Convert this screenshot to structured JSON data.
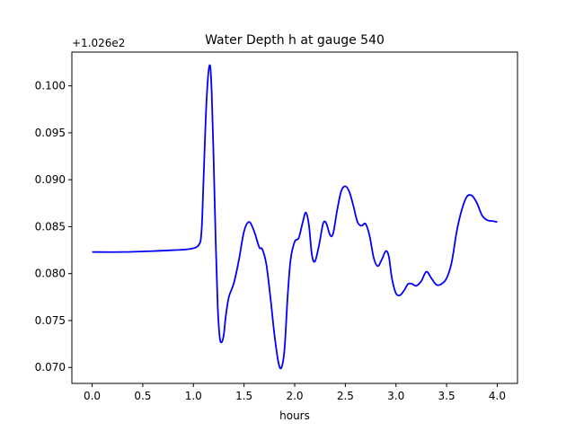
{
  "chart_data": {
    "type": "line",
    "title": "Water Depth h at gauge 540",
    "xlabel": "hours",
    "ylabel": "",
    "offset_label": "+1.026e2",
    "xlim": [
      -0.2,
      4.2
    ],
    "ylim": [
      0.0683,
      0.1036
    ],
    "x_ticks": [
      0.0,
      0.5,
      1.0,
      1.5,
      2.0,
      2.5,
      3.0,
      3.5,
      4.0
    ],
    "x_tick_labels": [
      "0.0",
      "0.5",
      "1.0",
      "1.5",
      "2.0",
      "2.5",
      "3.0",
      "3.5",
      "4.0"
    ],
    "y_ticks": [
      0.07,
      0.075,
      0.08,
      0.085,
      0.09,
      0.095,
      0.1
    ],
    "y_tick_labels": [
      "0.070",
      "0.075",
      "0.080",
      "0.085",
      "0.090",
      "0.095",
      "0.100"
    ],
    "grid": false,
    "line_color": "#0000ff",
    "series": [
      {
        "x": [
          0.0,
          0.3,
          0.6,
          0.8,
          0.95,
          1.05,
          1.08,
          1.1,
          1.13,
          1.16,
          1.18,
          1.2,
          1.22,
          1.24,
          1.26,
          1.28,
          1.3,
          1.32,
          1.35,
          1.4,
          1.45,
          1.5,
          1.55,
          1.6,
          1.65,
          1.68,
          1.72,
          1.76,
          1.8,
          1.84,
          1.87,
          1.9,
          1.93,
          1.96,
          2.0,
          2.04,
          2.08,
          2.11,
          2.14,
          2.17,
          2.2,
          2.24,
          2.28,
          2.31,
          2.35,
          2.38,
          2.42,
          2.46,
          2.5,
          2.54,
          2.58,
          2.62,
          2.66,
          2.7,
          2.74,
          2.78,
          2.82,
          2.86,
          2.9,
          2.93,
          2.96,
          3.0,
          3.04,
          3.08,
          3.12,
          3.16,
          3.2,
          3.25,
          3.3,
          3.35,
          3.4,
          3.45,
          3.5,
          3.55,
          3.6,
          3.65,
          3.7,
          3.75,
          3.8,
          3.85,
          3.9,
          3.95,
          4.0
        ],
        "y": [
          0.0823,
          0.0823,
          0.0824,
          0.0825,
          0.0826,
          0.083,
          0.0845,
          0.09,
          0.0985,
          0.1022,
          0.0995,
          0.092,
          0.0835,
          0.0765,
          0.0732,
          0.0727,
          0.0735,
          0.0755,
          0.0775,
          0.079,
          0.0815,
          0.0845,
          0.0855,
          0.0845,
          0.0828,
          0.0826,
          0.081,
          0.0775,
          0.0735,
          0.0705,
          0.07,
          0.072,
          0.0775,
          0.0815,
          0.0834,
          0.0838,
          0.0855,
          0.0865,
          0.0852,
          0.082,
          0.0813,
          0.083,
          0.0853,
          0.0854,
          0.0841,
          0.0843,
          0.0868,
          0.0888,
          0.0893,
          0.0887,
          0.0872,
          0.0855,
          0.0851,
          0.0853,
          0.084,
          0.0817,
          0.0808,
          0.0815,
          0.0824,
          0.0818,
          0.0795,
          0.0779,
          0.0777,
          0.0782,
          0.0789,
          0.0789,
          0.0787,
          0.0792,
          0.0802,
          0.0795,
          0.0788,
          0.0789,
          0.0795,
          0.0812,
          0.0845,
          0.0868,
          0.0882,
          0.0883,
          0.0875,
          0.0862,
          0.0857,
          0.0856,
          0.0855
        ]
      }
    ]
  }
}
